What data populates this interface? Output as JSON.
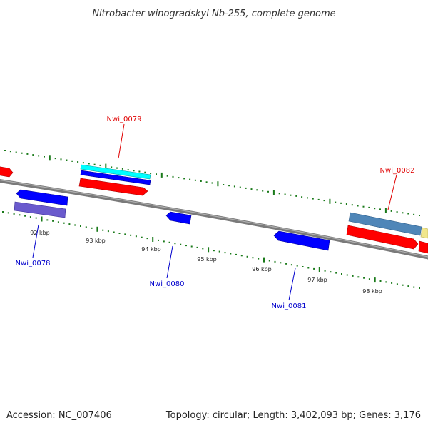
{
  "title": "Nitrobacter winogradskyi Nb-255, complete genome",
  "footer": {
    "accession": "Accession: NC_007406",
    "summary": "Topology: circular; Length: 3,402,093 bp; Genes: 3,176"
  },
  "colors": {
    "backbone": "#7a7a7a",
    "tick": "#1a7a1a",
    "forward_label": "#e00000",
    "reverse_label": "#0000cc",
    "red_feature": "#ff0000",
    "blue_feature": "#0000ff",
    "cyan_feature": "#00ffff",
    "steelblue_feature": "#4f86b8",
    "slate_feature": "#6a5acd",
    "khaki_feature": "#f0e68c"
  },
  "ticks": [
    "92 kbp",
    "93 kbp",
    "94 kbp",
    "95 kbp",
    "96 kbp",
    "97 kbp",
    "98 kbp"
  ],
  "gene_labels": [
    {
      "id": "Nwi_0079",
      "strand": "forward"
    },
    {
      "id": "Nwi_0082",
      "strand": "forward"
    },
    {
      "id": "Nwi_0078",
      "strand": "reverse"
    },
    {
      "id": "Nwi_0080",
      "strand": "reverse"
    },
    {
      "id": "Nwi_0081",
      "strand": "reverse"
    }
  ]
}
